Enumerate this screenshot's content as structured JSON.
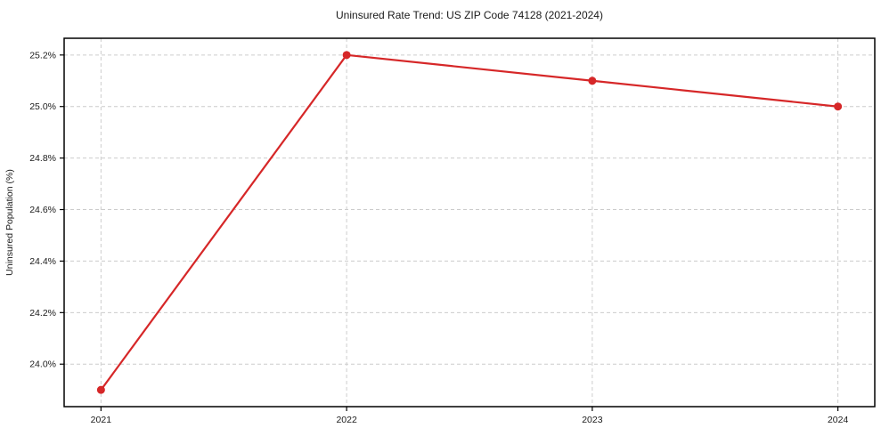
{
  "chart_data": {
    "type": "line",
    "title": "Uninsured Rate Trend: US ZIP Code 74128 (2021-2024)",
    "xlabel": "",
    "ylabel": "Uninsured Population (%)",
    "x": [
      2021,
      2022,
      2023,
      2024
    ],
    "series": [
      {
        "name": "Uninsured Population (%)",
        "values": [
          23.9,
          25.2,
          25.1,
          25.0
        ],
        "color": "#d62728",
        "marker": "circle"
      }
    ],
    "xticks": {
      "values": [
        2021,
        2022,
        2023,
        2024
      ],
      "labels": [
        "2021",
        "2022",
        "2023",
        "2024"
      ]
    },
    "yticks": {
      "values": [
        24.0,
        24.2,
        24.4,
        24.6,
        24.8,
        25.0,
        25.2
      ],
      "labels": [
        "24.0%",
        "24.2%",
        "24.4%",
        "24.6%",
        "24.8%",
        "25.0%",
        "25.2%"
      ]
    },
    "xlim": [
      2020.85,
      2024.15
    ],
    "ylim": [
      23.835,
      25.265
    ],
    "grid": true,
    "grid_style": "dashed",
    "grid_color": "#cccccc",
    "spine_color": "#000000",
    "background_color": "#ffffff",
    "legend": "none"
  }
}
